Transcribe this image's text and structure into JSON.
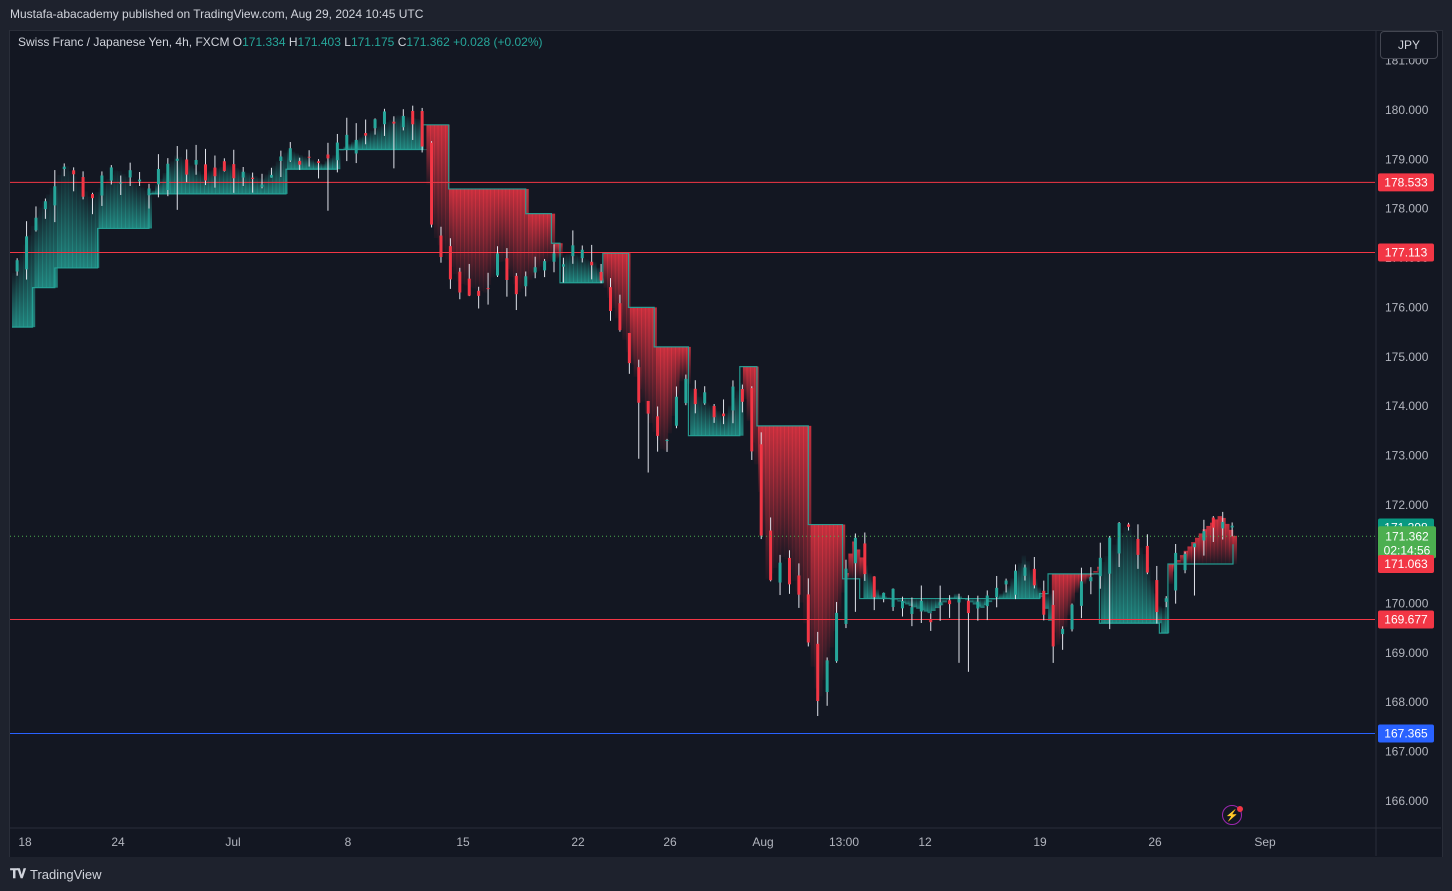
{
  "header": {
    "published": "Mustafa-abacademy published on TradingView.com, Aug 29, 2024 10:45 UTC"
  },
  "legend": {
    "symbol": "Swiss Franc / Japanese Yen, 4h, FXCM",
    "o_label": "O",
    "o": "171.334",
    "h_label": "H",
    "h": "171.403",
    "l_label": "L",
    "l": "171.175",
    "c_label": "C",
    "c": "171.362",
    "change": "+0.028 (+0.02%)"
  },
  "currency_button": "JPY",
  "footer": {
    "brand": "TradingView"
  },
  "colors": {
    "up": "#26a69a",
    "down": "#f23645",
    "level": "#f23645",
    "support": "#2962ff",
    "price_tag": "#4caf50",
    "teal_tag": "#089981"
  },
  "chart_data": {
    "type": "candlestick",
    "symbol": "CHFJPY",
    "timeframe": "4h",
    "ylim": [
      165.5,
      181.5
    ],
    "y_ticks": [
      "166.000",
      "167.000",
      "168.000",
      "169.000",
      "170.000",
      "171.000",
      "172.000",
      "173.000",
      "174.000",
      "175.000",
      "176.000",
      "177.000",
      "178.000",
      "179.000",
      "180.000",
      "181.000"
    ],
    "x_ticks": [
      "18",
      "24",
      "Jul",
      "8",
      "15",
      "22",
      "26",
      "Aug",
      "13:00",
      "12",
      "19",
      "26",
      "Sep"
    ],
    "horizontal_levels": [
      {
        "value": 178.533,
        "label": "178.533",
        "color": "#f23645"
      },
      {
        "value": 177.113,
        "label": "177.113",
        "color": "#f23645"
      },
      {
        "value": 169.677,
        "label": "169.677",
        "color": "#f23645"
      },
      {
        "value": 167.365,
        "label": "167.365",
        "color": "#2962ff"
      }
    ],
    "price_tags": [
      {
        "value": 171.398,
        "label": "171.398",
        "color": "#089981"
      },
      {
        "value": 171.362,
        "label": "171.362",
        "sublabel": "02:14:56",
        "color": "#4caf50"
      },
      {
        "value": 171.063,
        "label": "171.063",
        "color": "#f23645"
      }
    ],
    "last_price": 171.362,
    "close_path": [
      {
        "t": 0.0,
        "p": 176.7
      },
      {
        "t": 1.5,
        "p": 178.0
      },
      {
        "t": 3.0,
        "p": 178.9
      },
      {
        "t": 4.5,
        "p": 178.2
      },
      {
        "t": 6.0,
        "p": 178.8
      },
      {
        "t": 8.0,
        "p": 178.3
      },
      {
        "t": 9.5,
        "p": 179.1
      },
      {
        "t": 11.0,
        "p": 178.7
      },
      {
        "t": 12.5,
        "p": 178.9
      },
      {
        "t": 14.5,
        "p": 178.6
      },
      {
        "t": 16.0,
        "p": 179.2
      },
      {
        "t": 18.0,
        "p": 178.9
      },
      {
        "t": 19.5,
        "p": 179.3
      },
      {
        "t": 21.0,
        "p": 179.6
      },
      {
        "t": 22.5,
        "p": 179.9
      },
      {
        "t": 23.8,
        "p": 179.8
      },
      {
        "t": 24.5,
        "p": 177.5
      },
      {
        "t": 26.0,
        "p": 176.5
      },
      {
        "t": 27.5,
        "p": 176.3
      },
      {
        "t": 28.5,
        "p": 177.0
      },
      {
        "t": 29.5,
        "p": 176.3
      },
      {
        "t": 31.0,
        "p": 176.9
      },
      {
        "t": 32.5,
        "p": 177.1
      },
      {
        "t": 34.0,
        "p": 176.9
      },
      {
        "t": 35.5,
        "p": 175.5
      },
      {
        "t": 37.0,
        "p": 173.8
      },
      {
        "t": 38.0,
        "p": 173.0
      },
      {
        "t": 39.0,
        "p": 174.6
      },
      {
        "t": 40.0,
        "p": 174.2
      },
      {
        "t": 41.5,
        "p": 173.8
      },
      {
        "t": 42.5,
        "p": 174.5
      },
      {
        "t": 43.5,
        "p": 172.5
      },
      {
        "t": 44.0,
        "p": 170.5
      },
      {
        "t": 45.0,
        "p": 171.0
      },
      {
        "t": 46.0,
        "p": 170.0
      },
      {
        "t": 47.0,
        "p": 168.0
      },
      {
        "t": 48.0,
        "p": 169.5
      },
      {
        "t": 49.0,
        "p": 171.3
      },
      {
        "t": 50.5,
        "p": 170.2
      },
      {
        "t": 52.0,
        "p": 170.0
      },
      {
        "t": 53.5,
        "p": 169.8
      },
      {
        "t": 55.0,
        "p": 170.2
      },
      {
        "t": 56.5,
        "p": 169.9
      },
      {
        "t": 58.0,
        "p": 170.3
      },
      {
        "t": 59.0,
        "p": 171.0
      },
      {
        "t": 60.0,
        "p": 170.2
      },
      {
        "t": 61.0,
        "p": 169.1
      },
      {
        "t": 62.0,
        "p": 170.2
      },
      {
        "t": 63.5,
        "p": 170.8
      },
      {
        "t": 65.0,
        "p": 171.6
      },
      {
        "t": 66.0,
        "p": 171.0
      },
      {
        "t": 67.0,
        "p": 169.8
      },
      {
        "t": 68.0,
        "p": 170.9
      },
      {
        "t": 69.5,
        "p": 171.5
      },
      {
        "t": 70.5,
        "p": 171.8
      },
      {
        "t": 71.3,
        "p": 171.36
      }
    ],
    "trailing_band": [
      {
        "t": 0.0,
        "p": 175.6,
        "trend": "up"
      },
      {
        "t": 1.2,
        "p": 176.4,
        "trend": "up"
      },
      {
        "t": 2.5,
        "p": 176.8,
        "trend": "up"
      },
      {
        "t": 5.0,
        "p": 177.6,
        "trend": "up"
      },
      {
        "t": 8.0,
        "p": 178.3,
        "trend": "up"
      },
      {
        "t": 16.0,
        "p": 178.8,
        "trend": "up"
      },
      {
        "t": 19.0,
        "p": 179.2,
        "trend": "up"
      },
      {
        "t": 23.8,
        "p": 179.2,
        "trend": "up"
      },
      {
        "t": 24.0,
        "p": 179.7,
        "trend": "down"
      },
      {
        "t": 25.5,
        "p": 178.4,
        "trend": "down"
      },
      {
        "t": 30.0,
        "p": 177.9,
        "trend": "down"
      },
      {
        "t": 31.5,
        "p": 177.3,
        "trend": "down"
      },
      {
        "t": 32.0,
        "p": 176.5,
        "trend": "up"
      },
      {
        "t": 34.0,
        "p": 176.5,
        "trend": "up"
      },
      {
        "t": 34.5,
        "p": 177.1,
        "trend": "down"
      },
      {
        "t": 36.0,
        "p": 176.0,
        "trend": "down"
      },
      {
        "t": 37.5,
        "p": 175.2,
        "trend": "down"
      },
      {
        "t": 39.0,
        "p": 175.2,
        "trend": "down"
      },
      {
        "t": 39.5,
        "p": 173.4,
        "trend": "up"
      },
      {
        "t": 42.0,
        "p": 173.4,
        "trend": "up"
      },
      {
        "t": 42.5,
        "p": 174.8,
        "trend": "down"
      },
      {
        "t": 43.5,
        "p": 173.6,
        "trend": "down"
      },
      {
        "t": 46.5,
        "p": 171.6,
        "trend": "down"
      },
      {
        "t": 48.5,
        "p": 170.5,
        "trend": "down"
      },
      {
        "t": 49.5,
        "p": 170.1,
        "trend": "up"
      },
      {
        "t": 60.0,
        "p": 170.2,
        "trend": "up"
      },
      {
        "t": 60.5,
        "p": 170.6,
        "trend": "down"
      },
      {
        "t": 63.0,
        "p": 170.6,
        "trend": "down"
      },
      {
        "t": 63.5,
        "p": 169.6,
        "trend": "up"
      },
      {
        "t": 67.0,
        "p": 169.4,
        "trend": "up"
      },
      {
        "t": 67.5,
        "p": 170.8,
        "trend": "down"
      },
      {
        "t": 71.3,
        "p": 171.2,
        "trend": "down"
      }
    ]
  }
}
